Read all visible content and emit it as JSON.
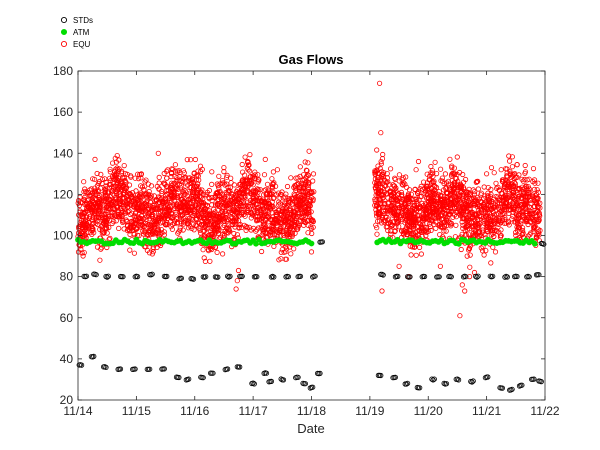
{
  "chart_data": {
    "type": "scatter",
    "title": "Gas Flows",
    "xlabel": "Date",
    "ylabel": "",
    "xlim": [
      "2000-11-14",
      "2000-11-22"
    ],
    "ylim": [
      20,
      180
    ],
    "x_ticks": [
      "11/14",
      "11/15",
      "11/16",
      "11/17",
      "11/18",
      "11/19",
      "11/20",
      "11/21",
      "11/22"
    ],
    "y_ticks": [
      20,
      40,
      60,
      80,
      100,
      120,
      140,
      160,
      180
    ],
    "grid": false,
    "legend_position": "top-left",
    "legend": [
      {
        "name": "STDs",
        "marker": "open-circle",
        "color": "#000000"
      },
      {
        "name": "ATM",
        "marker": "filled-circle",
        "color": "#00dd00"
      },
      {
        "name": "EQU",
        "marker": "open-circle",
        "color": "#ff0000"
      }
    ],
    "series": [
      {
        "name": "STDs",
        "color": "#000000",
        "points": [
          [
            "2000-11-14 01:00",
            37
          ],
          [
            "2000-11-14 03:00",
            80
          ],
          [
            "2000-11-14 06:00",
            41
          ],
          [
            "2000-11-14 07:00",
            81
          ],
          [
            "2000-11-14 11:00",
            36
          ],
          [
            "2000-11-14 12:00",
            80
          ],
          [
            "2000-11-14 17:00",
            35
          ],
          [
            "2000-11-14 18:00",
            80
          ],
          [
            "2000-11-14 23:00",
            35
          ],
          [
            "2000-11-15 00:00",
            80
          ],
          [
            "2000-11-15 05:00",
            35
          ],
          [
            "2000-11-15 06:00",
            81
          ],
          [
            "2000-11-15 11:00",
            35
          ],
          [
            "2000-11-15 12:00",
            80
          ],
          [
            "2000-11-15 17:00",
            31
          ],
          [
            "2000-11-15 18:00",
            79
          ],
          [
            "2000-11-15 21:00",
            30
          ],
          [
            "2000-11-15 23:00",
            79
          ],
          [
            "2000-11-16 03:00",
            31
          ],
          [
            "2000-11-16 04:00",
            80
          ],
          [
            "2000-11-16 07:00",
            33
          ],
          [
            "2000-11-16 09:00",
            80
          ],
          [
            "2000-11-16 13:00",
            35
          ],
          [
            "2000-11-16 14:00",
            80
          ],
          [
            "2000-11-16 18:00",
            36
          ],
          [
            "2000-11-16 19:00",
            80
          ],
          [
            "2000-11-17 00:00",
            28
          ],
          [
            "2000-11-17 01:00",
            80
          ],
          [
            "2000-11-17 05:00",
            33
          ],
          [
            "2000-11-17 07:00",
            29
          ],
          [
            "2000-11-17 08:00",
            80
          ],
          [
            "2000-11-17 12:00",
            30
          ],
          [
            "2000-11-17 14:00",
            80
          ],
          [
            "2000-11-17 18:00",
            31
          ],
          [
            "2000-11-17 19:00",
            80
          ],
          [
            "2000-11-17 21:00",
            28
          ],
          [
            "2000-11-18 00:00",
            26
          ],
          [
            "2000-11-18 01:00",
            80
          ],
          [
            "2000-11-18 03:00",
            33
          ],
          [
            "2000-11-18 04:00",
            97
          ],
          [
            "2000-11-19 04:00",
            32
          ],
          [
            "2000-11-19 05:00",
            81
          ],
          [
            "2000-11-19 10:00",
            31
          ],
          [
            "2000-11-19 11:00",
            80
          ],
          [
            "2000-11-19 15:00",
            28
          ],
          [
            "2000-11-19 16:00",
            80
          ],
          [
            "2000-11-19 20:00",
            26
          ],
          [
            "2000-11-19 22:00",
            80
          ],
          [
            "2000-11-20 02:00",
            30
          ],
          [
            "2000-11-20 04:00",
            80
          ],
          [
            "2000-11-20 07:00",
            28
          ],
          [
            "2000-11-20 09:00",
            80
          ],
          [
            "2000-11-20 12:00",
            30
          ],
          [
            "2000-11-20 15:00",
            80
          ],
          [
            "2000-11-20 18:00",
            29
          ],
          [
            "2000-11-20 20:00",
            80
          ],
          [
            "2000-11-21 00:00",
            31
          ],
          [
            "2000-11-21 02:00",
            80
          ],
          [
            "2000-11-21 06:00",
            26
          ],
          [
            "2000-11-21 08:00",
            80
          ],
          [
            "2000-11-21 10:00",
            25
          ],
          [
            "2000-11-21 12:00",
            80
          ],
          [
            "2000-11-21 14:00",
            27
          ],
          [
            "2000-11-21 17:00",
            80
          ],
          [
            "2000-11-21 19:00",
            30
          ],
          [
            "2000-11-21 21:00",
            81
          ],
          [
            "2000-11-21 22:00",
            29
          ],
          [
            "2000-11-21 23:00",
            96
          ]
        ]
      },
      {
        "name": "ATM",
        "color": "#00dd00",
        "value_around": 97,
        "segments": [
          [
            "2000-11-14 00:00",
            "2000-11-18 00:00"
          ],
          [
            "2000-11-19 03:00",
            "2000-11-21 20:00"
          ]
        ]
      },
      {
        "name": "EQU",
        "color": "#ff0000",
        "value_range": [
          95,
          130
        ],
        "segments": [
          [
            "2000-11-14 00:00",
            "2000-11-18 01:00"
          ],
          [
            "2000-11-19 02:00",
            "2000-11-21 22:00"
          ]
        ],
        "outliers": [
          [
            "2000-11-14 07:00",
            137
          ],
          [
            "2000-11-14 09:00",
            88
          ],
          [
            "2000-11-14 19:00",
            134
          ],
          [
            "2000-11-15 09:00",
            140
          ],
          [
            "2000-11-16 07:00",
            131
          ],
          [
            "2000-11-16 12:00",
            133
          ],
          [
            "2000-11-16 17:00",
            74
          ],
          [
            "2000-11-16 17:30",
            78
          ],
          [
            "2000-11-16 18:00",
            83
          ],
          [
            "2000-11-17 05:00",
            137
          ],
          [
            "2000-11-17 10:00",
            132
          ],
          [
            "2000-11-17 23:00",
            141
          ],
          [
            "2000-11-18 00:00",
            92
          ],
          [
            "2000-11-19 04:00",
            174
          ],
          [
            "2000-11-19 04:30",
            150
          ],
          [
            "2000-11-19 05:00",
            73
          ],
          [
            "2000-11-19 06:00",
            127
          ],
          [
            "2000-11-19 12:00",
            85
          ],
          [
            "2000-11-19 16:00",
            80
          ],
          [
            "2000-11-19 19:00",
            132
          ],
          [
            "2000-11-19 20:00",
            136
          ],
          [
            "2000-11-20 02:00",
            120
          ],
          [
            "2000-11-20 05:00",
            85
          ],
          [
            "2000-11-20 11:00",
            130
          ],
          [
            "2000-11-20 13:00",
            61
          ],
          [
            "2000-11-20 14:00",
            76
          ],
          [
            "2000-11-20 15:00",
            73
          ],
          [
            "2000-11-20 16:00",
            90
          ],
          [
            "2000-11-20 17:00",
            80
          ],
          [
            "2000-11-20 19:00",
            82
          ],
          [
            "2000-11-21 00:00",
            130
          ],
          [
            "2000-11-21 02:00",
            133
          ],
          [
            "2000-11-21 06:00",
            132
          ],
          [
            "2000-11-21 08:00",
            106
          ],
          [
            "2000-11-21 12:00",
            100
          ],
          [
            "2000-11-21 16:00",
            131
          ]
        ]
      }
    ]
  }
}
